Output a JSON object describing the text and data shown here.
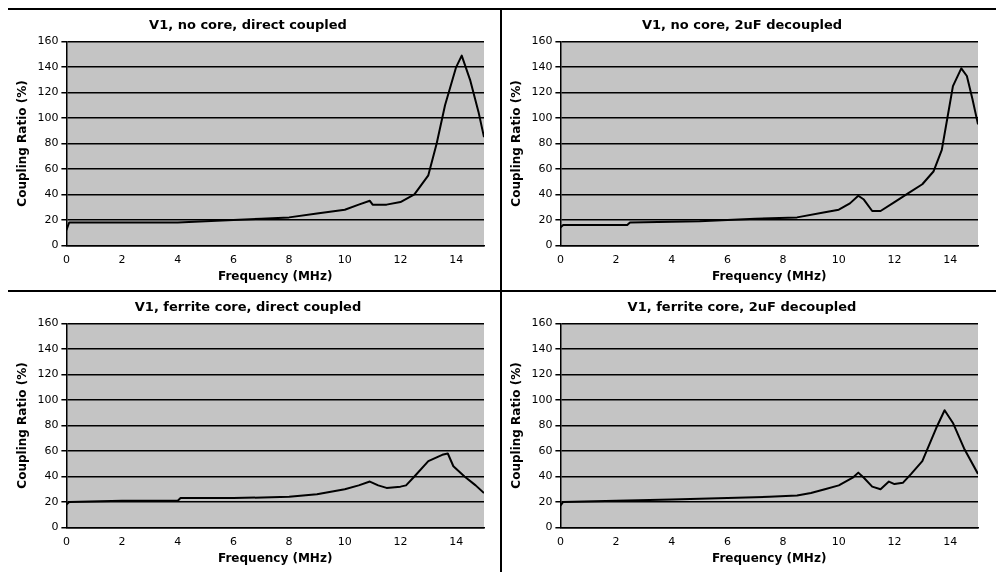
{
  "chart_data": [
    {
      "type": "line",
      "title": "V1, no core, direct coupled",
      "xlabel": "Frequency (MHz)",
      "ylabel": "Coupling Ratio (%)",
      "xlim": [
        0,
        15
      ],
      "xticks": [
        0,
        2,
        4,
        6,
        8,
        10,
        12,
        14
      ],
      "ylim": [
        0,
        160
      ],
      "yticks": [
        0,
        20,
        40,
        60,
        80,
        100,
        120,
        140,
        160
      ],
      "grid": "y",
      "legend": false,
      "marker": "none",
      "line_style": "solid",
      "series": [
        {
          "color": "#000000",
          "x": [
            0,
            0.1,
            1,
            2,
            3,
            4,
            5,
            6,
            7,
            8,
            9,
            10,
            10.5,
            10.9,
            11,
            11.5,
            12,
            12.5,
            13,
            13.3,
            13.6,
            14,
            14.2,
            14.5,
            14.8,
            15
          ],
          "values": [
            12,
            18,
            18,
            18,
            18,
            18,
            19,
            20,
            21,
            22,
            25,
            28,
            32,
            35,
            32,
            32,
            34,
            40,
            55,
            80,
            110,
            140,
            149,
            130,
            105,
            85
          ]
        }
      ]
    },
    {
      "type": "line",
      "title": "V1, no core, 2uF decoupled",
      "xlabel": "Frequency (MHz)",
      "ylabel": "Coupling Ratio (%)",
      "xlim": [
        0,
        15
      ],
      "xticks": [
        0,
        2,
        4,
        6,
        8,
        10,
        12,
        14
      ],
      "ylim": [
        0,
        160
      ],
      "yticks": [
        0,
        20,
        40,
        60,
        80,
        100,
        120,
        140,
        160
      ],
      "grid": "y",
      "legend": false,
      "marker": "none",
      "line_style": "solid",
      "series": [
        {
          "color": "#000000",
          "x": [
            0,
            0.1,
            2.4,
            2.5,
            5,
            7,
            8.5,
            9.5,
            10,
            10.4,
            10.7,
            10.9,
            11.2,
            11.5,
            12,
            12.5,
            13,
            13.4,
            13.7,
            13.9,
            14.1,
            14.4,
            14.6,
            14.8,
            15
          ],
          "values": [
            14,
            16,
            16,
            18,
            19,
            21,
            22,
            26,
            28,
            33,
            39,
            36,
            27,
            27,
            34,
            41,
            48,
            58,
            75,
            100,
            125,
            139,
            133,
            115,
            95
          ]
        }
      ]
    },
    {
      "type": "line",
      "title": "V1, ferrite core, direct coupled",
      "xlabel": "Frequency (MHz)",
      "ylabel": "Coupling Ratio (%)",
      "xlim": [
        0,
        15
      ],
      "xticks": [
        0,
        2,
        4,
        6,
        8,
        10,
        12,
        14
      ],
      "ylim": [
        0,
        160
      ],
      "yticks": [
        0,
        20,
        40,
        60,
        80,
        100,
        120,
        140,
        160
      ],
      "grid": "y",
      "legend": false,
      "marker": "none",
      "line_style": "solid",
      "series": [
        {
          "color": "#000000",
          "x": [
            0,
            0.1,
            2,
            4,
            4.1,
            6,
            8,
            9,
            10,
            10.5,
            10.9,
            11.2,
            11.5,
            12,
            12.2,
            12.5,
            13,
            13.5,
            13.7,
            13.9,
            14.3,
            14.7,
            15
          ],
          "values": [
            18,
            20,
            21,
            21,
            23,
            23,
            24,
            26,
            30,
            33,
            36,
            33,
            31,
            32,
            33,
            40,
            52,
            57,
            58,
            48,
            40,
            33,
            27
          ]
        }
      ]
    },
    {
      "type": "line",
      "title": "V1, ferrite core, 2uF decoupled",
      "xlabel": "Frequency (MHz)",
      "ylabel": "Coupling Ratio (%)",
      "xlim": [
        0,
        15
      ],
      "xticks": [
        0,
        2,
        4,
        6,
        8,
        10,
        12,
        14
      ],
      "ylim": [
        0,
        160
      ],
      "yticks": [
        0,
        20,
        40,
        60,
        80,
        100,
        120,
        140,
        160
      ],
      "grid": "y",
      "legend": false,
      "marker": "none",
      "line_style": "solid",
      "series": [
        {
          "color": "#000000",
          "x": [
            0,
            0.1,
            2,
            4,
            6,
            7.5,
            8.5,
            9,
            9.5,
            10,
            10.5,
            10.7,
            10.9,
            11.2,
            11.5,
            11.8,
            12,
            12.3,
            12.6,
            13,
            13.5,
            13.8,
            14.1,
            14.5,
            15
          ],
          "values": [
            17,
            20,
            21,
            22,
            23,
            24,
            25,
            27,
            30,
            33,
            39,
            43,
            39,
            32,
            30,
            36,
            34,
            35,
            42,
            52,
            78,
            92,
            82,
            62,
            42
          ]
        }
      ]
    }
  ]
}
